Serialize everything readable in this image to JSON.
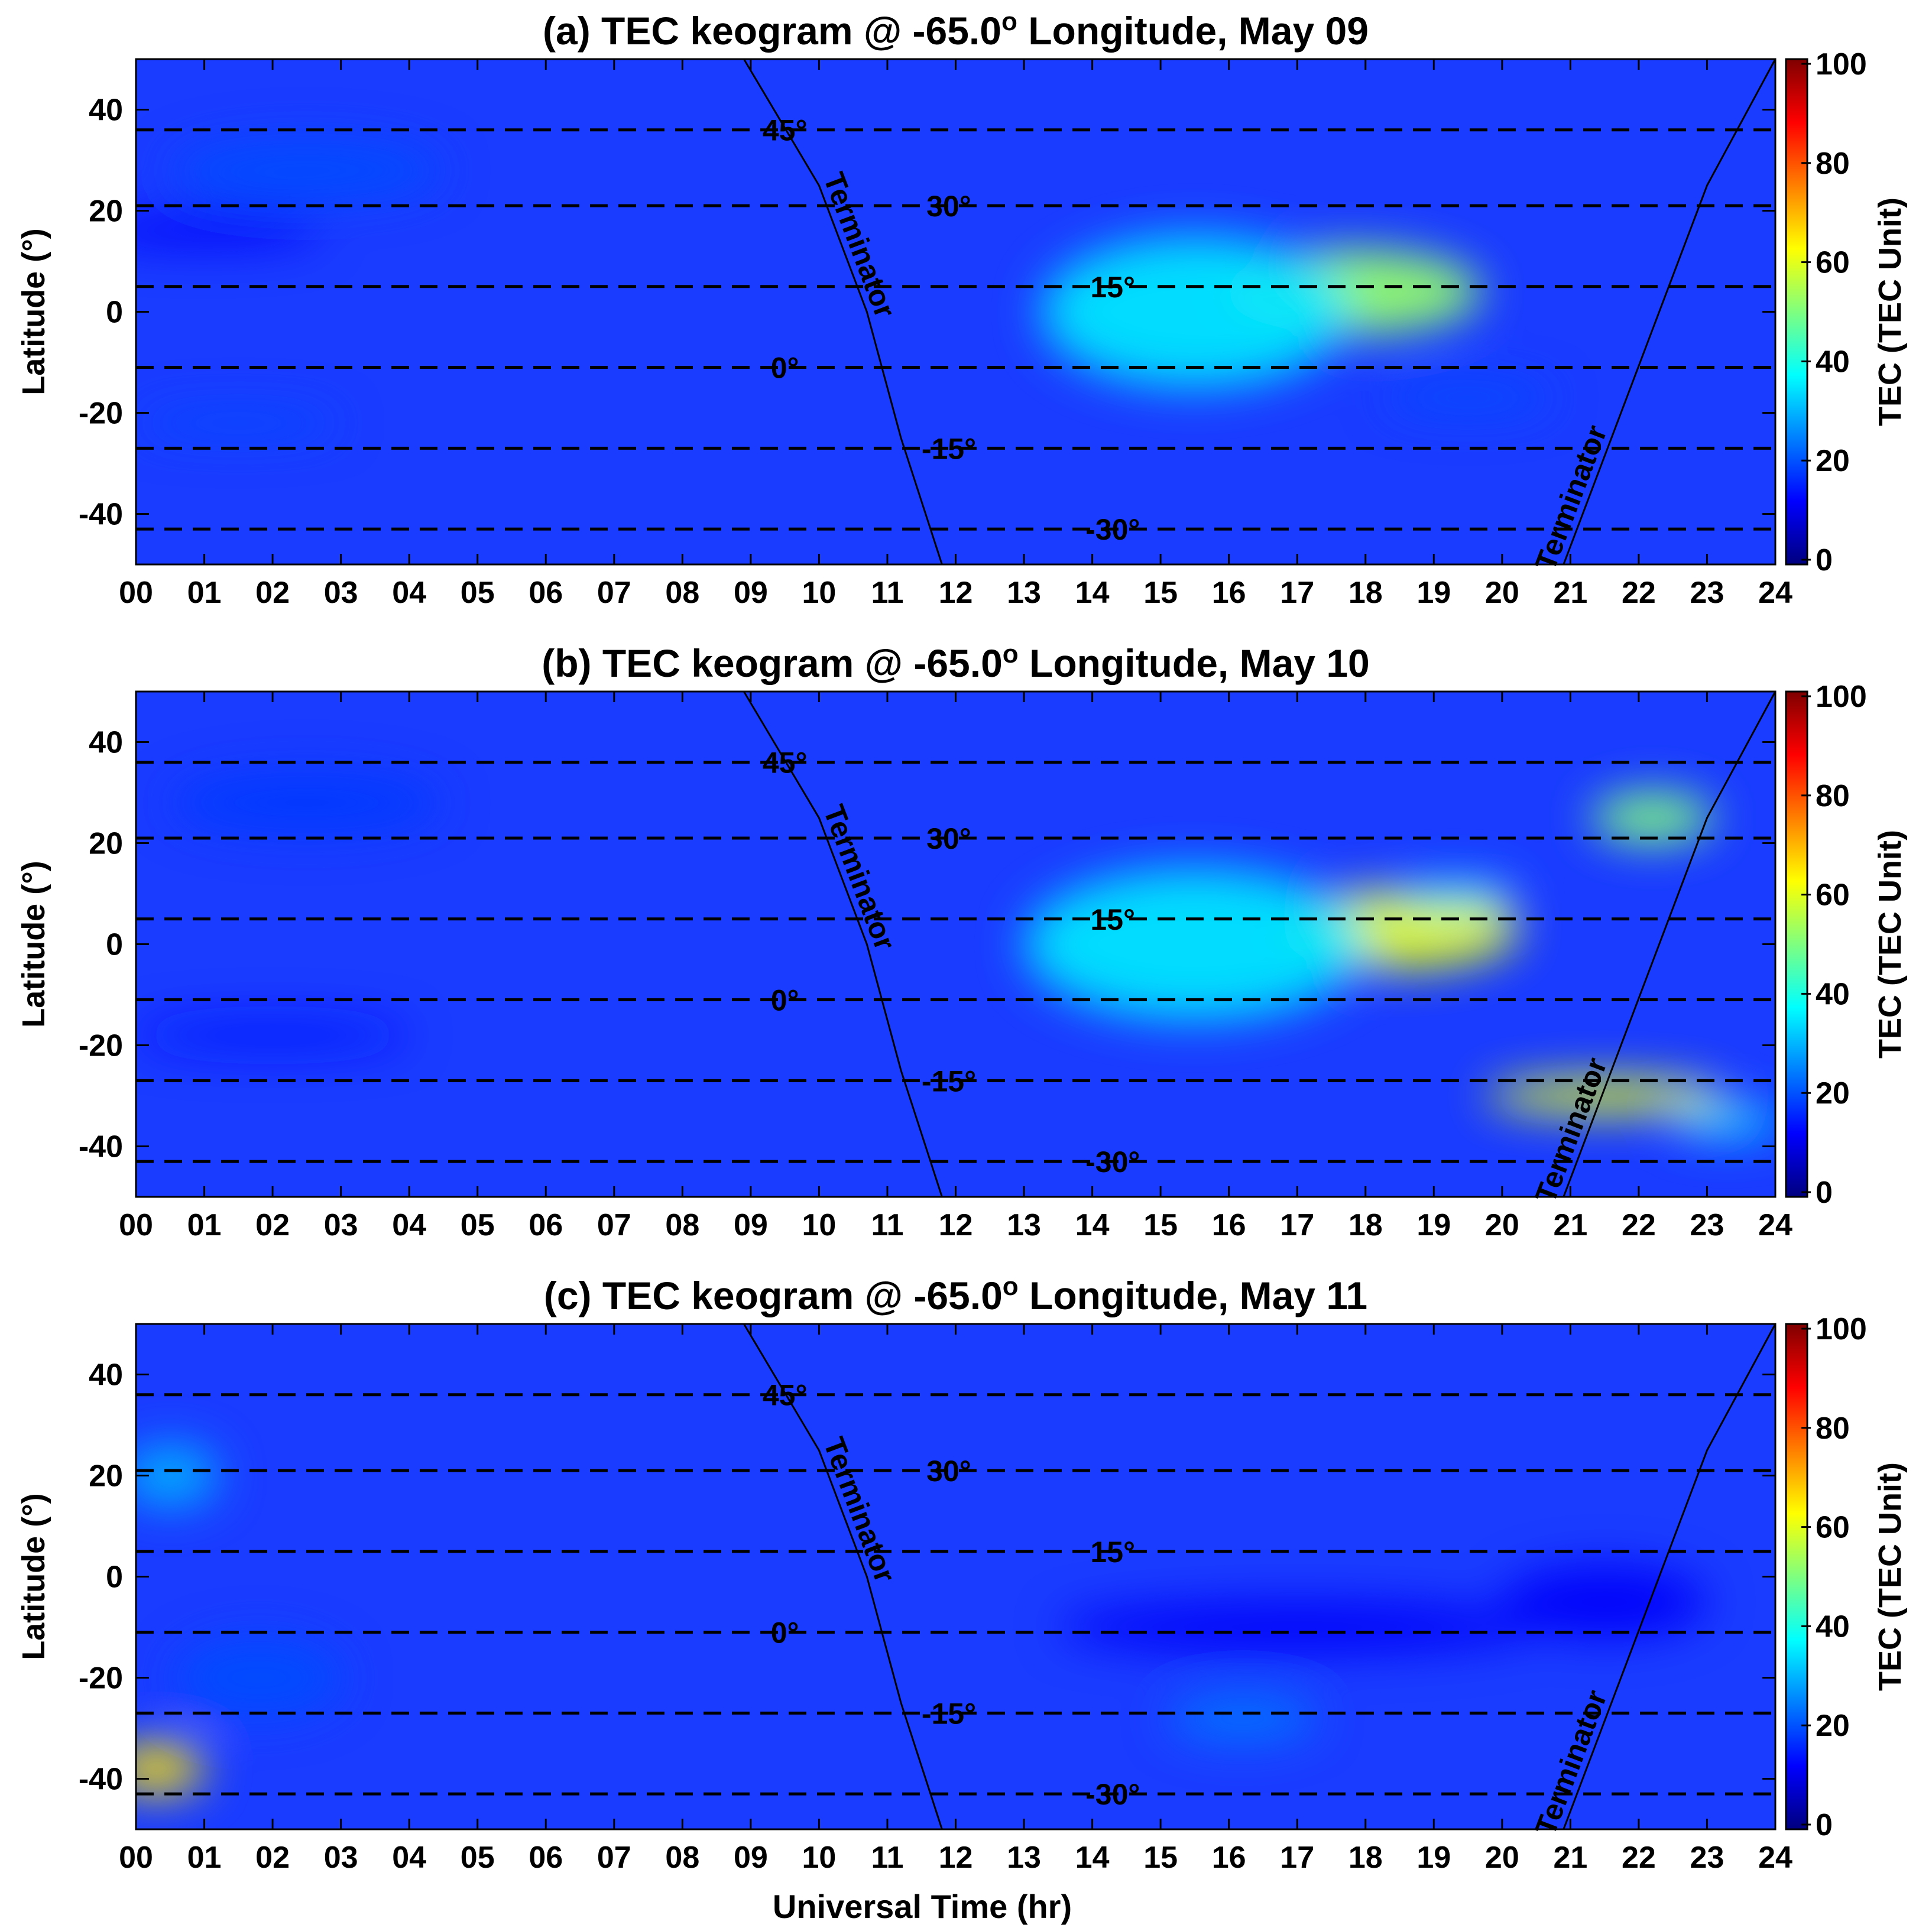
{
  "figure": {
    "shared_xlabel": "Universal Time (hr)",
    "colorbar_label": "TEC (TEC Unit)",
    "colorbar_ticks": [
      "0",
      "20",
      "40",
      "60",
      "80",
      "100"
    ],
    "colorbar_range": [
      0,
      100
    ],
    "colormap": [
      "#00007f",
      "#0000ff",
      "#007fff",
      "#00ffff",
      "#7fff7f",
      "#ffff00",
      "#ff7f00",
      "#ff0000",
      "#7f0000"
    ]
  },
  "chart_data": [
    {
      "type": "heatmap",
      "title": "(a) TEC keogram @  -65.0",
      "title_suffix": " Longitude, May 09",
      "title_degree": "o",
      "xlabel": "",
      "ylabel": "Latitude (°)",
      "x_tick_labels": [
        "00",
        "01",
        "02",
        "03",
        "04",
        "05",
        "06",
        "07",
        "08",
        "09",
        "10",
        "11",
        "12",
        "13",
        "14",
        "15",
        "16",
        "17",
        "18",
        "19",
        "20",
        "21",
        "22",
        "23",
        "24"
      ],
      "y_tick_labels": [
        "40",
        "20",
        "0",
        "-20",
        "-40"
      ],
      "y_tick_values": [
        40,
        20,
        0,
        -20,
        -40
      ],
      "xlim": [
        0,
        24
      ],
      "ylim": [
        -50,
        50
      ],
      "colorbar_ticks": [
        "0",
        "20",
        "40",
        "60",
        "80",
        "100"
      ],
      "dashed_lines": [
        {
          "lat": 36,
          "label": "45°",
          "label_ut": 9.5
        },
        {
          "lat": 21,
          "label": "30°",
          "label_ut": 11.9
        },
        {
          "lat": 5,
          "label": "15°",
          "label_ut": 14.3
        },
        {
          "lat": -11,
          "label": "0°",
          "label_ut": 9.5
        },
        {
          "lat": -27,
          "label": "-15°",
          "label_ut": 11.9
        },
        {
          "lat": -43,
          "label": "-30°",
          "label_ut": 14.3
        }
      ],
      "terminators": [
        {
          "label": "Terminator",
          "points": [
            [
              8.9,
              50
            ],
            [
              10.0,
              25
            ],
            [
              10.7,
              0
            ],
            [
              11.2,
              -25
            ],
            [
              11.8,
              -50
            ]
          ]
        },
        {
          "label": "Terminator",
          "points": [
            [
              24.0,
              50
            ],
            [
              23.0,
              25
            ],
            [
              22.3,
              0
            ],
            [
              21.6,
              -25
            ],
            [
              20.9,
              -50
            ]
          ]
        }
      ],
      "tec_blobs": [
        {
          "ut": 17.8,
          "lat": 4,
          "w": 3.8,
          "h": 17,
          "tec": 52
        },
        {
          "ut": 19.5,
          "lat": -17,
          "w": 2.5,
          "h": 6,
          "tec": 20
        },
        {
          "ut": 15.5,
          "lat": 0,
          "w": 4.5,
          "h": 30,
          "tec": 35
        },
        {
          "ut": 2.5,
          "lat": 28,
          "w": 4.0,
          "h": 12,
          "tec": 20
        },
        {
          "ut": 1.5,
          "lat": -22,
          "w": 3.0,
          "h": 5,
          "tec": 20
        },
        {
          "ut": 1.0,
          "lat": 16,
          "w": 3.5,
          "h": 6,
          "tec": 12
        }
      ]
    },
    {
      "type": "heatmap",
      "title": "(b) TEC keogram @  -65.0",
      "title_suffix": " Longitude, May 10",
      "title_degree": "o",
      "xlabel": "",
      "ylabel": "Latitude (°)",
      "x_tick_labels": [
        "00",
        "01",
        "02",
        "03",
        "04",
        "05",
        "06",
        "07",
        "08",
        "09",
        "10",
        "11",
        "12",
        "13",
        "14",
        "15",
        "16",
        "17",
        "18",
        "19",
        "20",
        "21",
        "22",
        "23",
        "24"
      ],
      "y_tick_labels": [
        "40",
        "20",
        "0",
        "-20",
        "-40"
      ],
      "y_tick_values": [
        40,
        20,
        0,
        -20,
        -40
      ],
      "xlim": [
        0,
        24
      ],
      "ylim": [
        -50,
        50
      ],
      "colorbar_ticks": [
        "0",
        "20",
        "40",
        "60",
        "80",
        "100"
      ],
      "dashed_lines": [
        {
          "lat": 36,
          "label": "45°",
          "label_ut": 9.5
        },
        {
          "lat": 21,
          "label": "30°",
          "label_ut": 11.9
        },
        {
          "lat": 5,
          "label": "15°",
          "label_ut": 14.3
        },
        {
          "lat": -11,
          "label": "0°",
          "label_ut": 9.5
        },
        {
          "lat": -27,
          "label": "-15°",
          "label_ut": 11.9
        },
        {
          "lat": -43,
          "label": "-30°",
          "label_ut": 14.3
        }
      ],
      "terminators": [
        {
          "label": "Terminator",
          "points": [
            [
              8.9,
              50
            ],
            [
              10.0,
              25
            ],
            [
              10.7,
              0
            ],
            [
              11.2,
              -25
            ],
            [
              11.8,
              -50
            ]
          ]
        },
        {
          "label": "Terminator",
          "points": [
            [
              24.0,
              50
            ],
            [
              23.0,
              25
            ],
            [
              22.3,
              0
            ],
            [
              21.6,
              -25
            ],
            [
              20.9,
              -50
            ]
          ]
        }
      ],
      "tec_blobs": [
        {
          "ut": 18.5,
          "lat": 3,
          "w": 3.5,
          "h": 16,
          "tec": 60
        },
        {
          "ut": 19.3,
          "lat": 10,
          "w": 1.8,
          "h": 5,
          "tec": 35
        },
        {
          "ut": 22.2,
          "lat": 25,
          "w": 1.8,
          "h": 10,
          "tec": 50
        },
        {
          "ut": 21.5,
          "lat": -30,
          "w": 3.5,
          "h": 7,
          "tec": 60
        },
        {
          "ut": 23.3,
          "lat": -35,
          "w": 1.6,
          "h": 6,
          "tec": 35
        },
        {
          "ut": 15.5,
          "lat": 0,
          "w": 5.0,
          "h": 30,
          "tec": 35
        },
        {
          "ut": 2.5,
          "lat": 28,
          "w": 4.0,
          "h": 12,
          "tec": 18
        },
        {
          "ut": 2.0,
          "lat": -18,
          "w": 4.0,
          "h": 6,
          "tec": 15
        }
      ]
    },
    {
      "type": "heatmap",
      "title": "(c) TEC keogram @  -65.0",
      "title_suffix": " Longitude, May 11",
      "title_degree": "o",
      "xlabel": "Universal Time (hr)",
      "ylabel": "Latitude (°)",
      "x_tick_labels": [
        "00",
        "01",
        "02",
        "03",
        "04",
        "05",
        "06",
        "07",
        "08",
        "09",
        "10",
        "11",
        "12",
        "13",
        "14",
        "15",
        "16",
        "17",
        "18",
        "19",
        "20",
        "21",
        "22",
        "23",
        "24"
      ],
      "y_tick_labels": [
        "40",
        "20",
        "0",
        "-20",
        "-40"
      ],
      "y_tick_values": [
        40,
        20,
        0,
        -20,
        -40
      ],
      "xlim": [
        0,
        24
      ],
      "ylim": [
        -50,
        50
      ],
      "colorbar_ticks": [
        "0",
        "20",
        "40",
        "60",
        "80",
        "100"
      ],
      "dashed_lines": [
        {
          "lat": 36,
          "label": "45°",
          "label_ut": 9.5
        },
        {
          "lat": 21,
          "label": "30°",
          "label_ut": 11.9
        },
        {
          "lat": 5,
          "label": "15°",
          "label_ut": 14.3
        },
        {
          "lat": -11,
          "label": "0°",
          "label_ut": 9.5
        },
        {
          "lat": -27,
          "label": "-15°",
          "label_ut": 11.9
        },
        {
          "lat": -43,
          "label": "-30°",
          "label_ut": 14.3
        }
      ],
      "terminators": [
        {
          "label": "Terminator",
          "points": [
            [
              8.9,
              50
            ],
            [
              10.0,
              25
            ],
            [
              10.7,
              0
            ],
            [
              11.2,
              -25
            ],
            [
              11.8,
              -50
            ]
          ]
        },
        {
          "label": "Terminator",
          "points": [
            [
              24.0,
              50
            ],
            [
              23.0,
              25
            ],
            [
              22.3,
              0
            ],
            [
              21.6,
              -25
            ],
            [
              20.9,
              -50
            ]
          ]
        }
      ],
      "tec_blobs": [
        {
          "ut": 0.3,
          "lat": -38,
          "w": 1.4,
          "h": 10,
          "tec": 65
        },
        {
          "ut": 0.5,
          "lat": 20,
          "w": 1.4,
          "h": 12,
          "tec": 30
        },
        {
          "ut": 1.8,
          "lat": -20,
          "w": 2.5,
          "h": 16,
          "tec": 20
        },
        {
          "ut": 16.2,
          "lat": -28,
          "w": 2.2,
          "h": 9,
          "tec": 24
        },
        {
          "ut": 17.0,
          "lat": -10,
          "w": 7.0,
          "h": 10,
          "tec": 12
        },
        {
          "ut": 21.5,
          "lat": -5,
          "w": 3.0,
          "h": 14,
          "tec": 12
        }
      ]
    }
  ]
}
